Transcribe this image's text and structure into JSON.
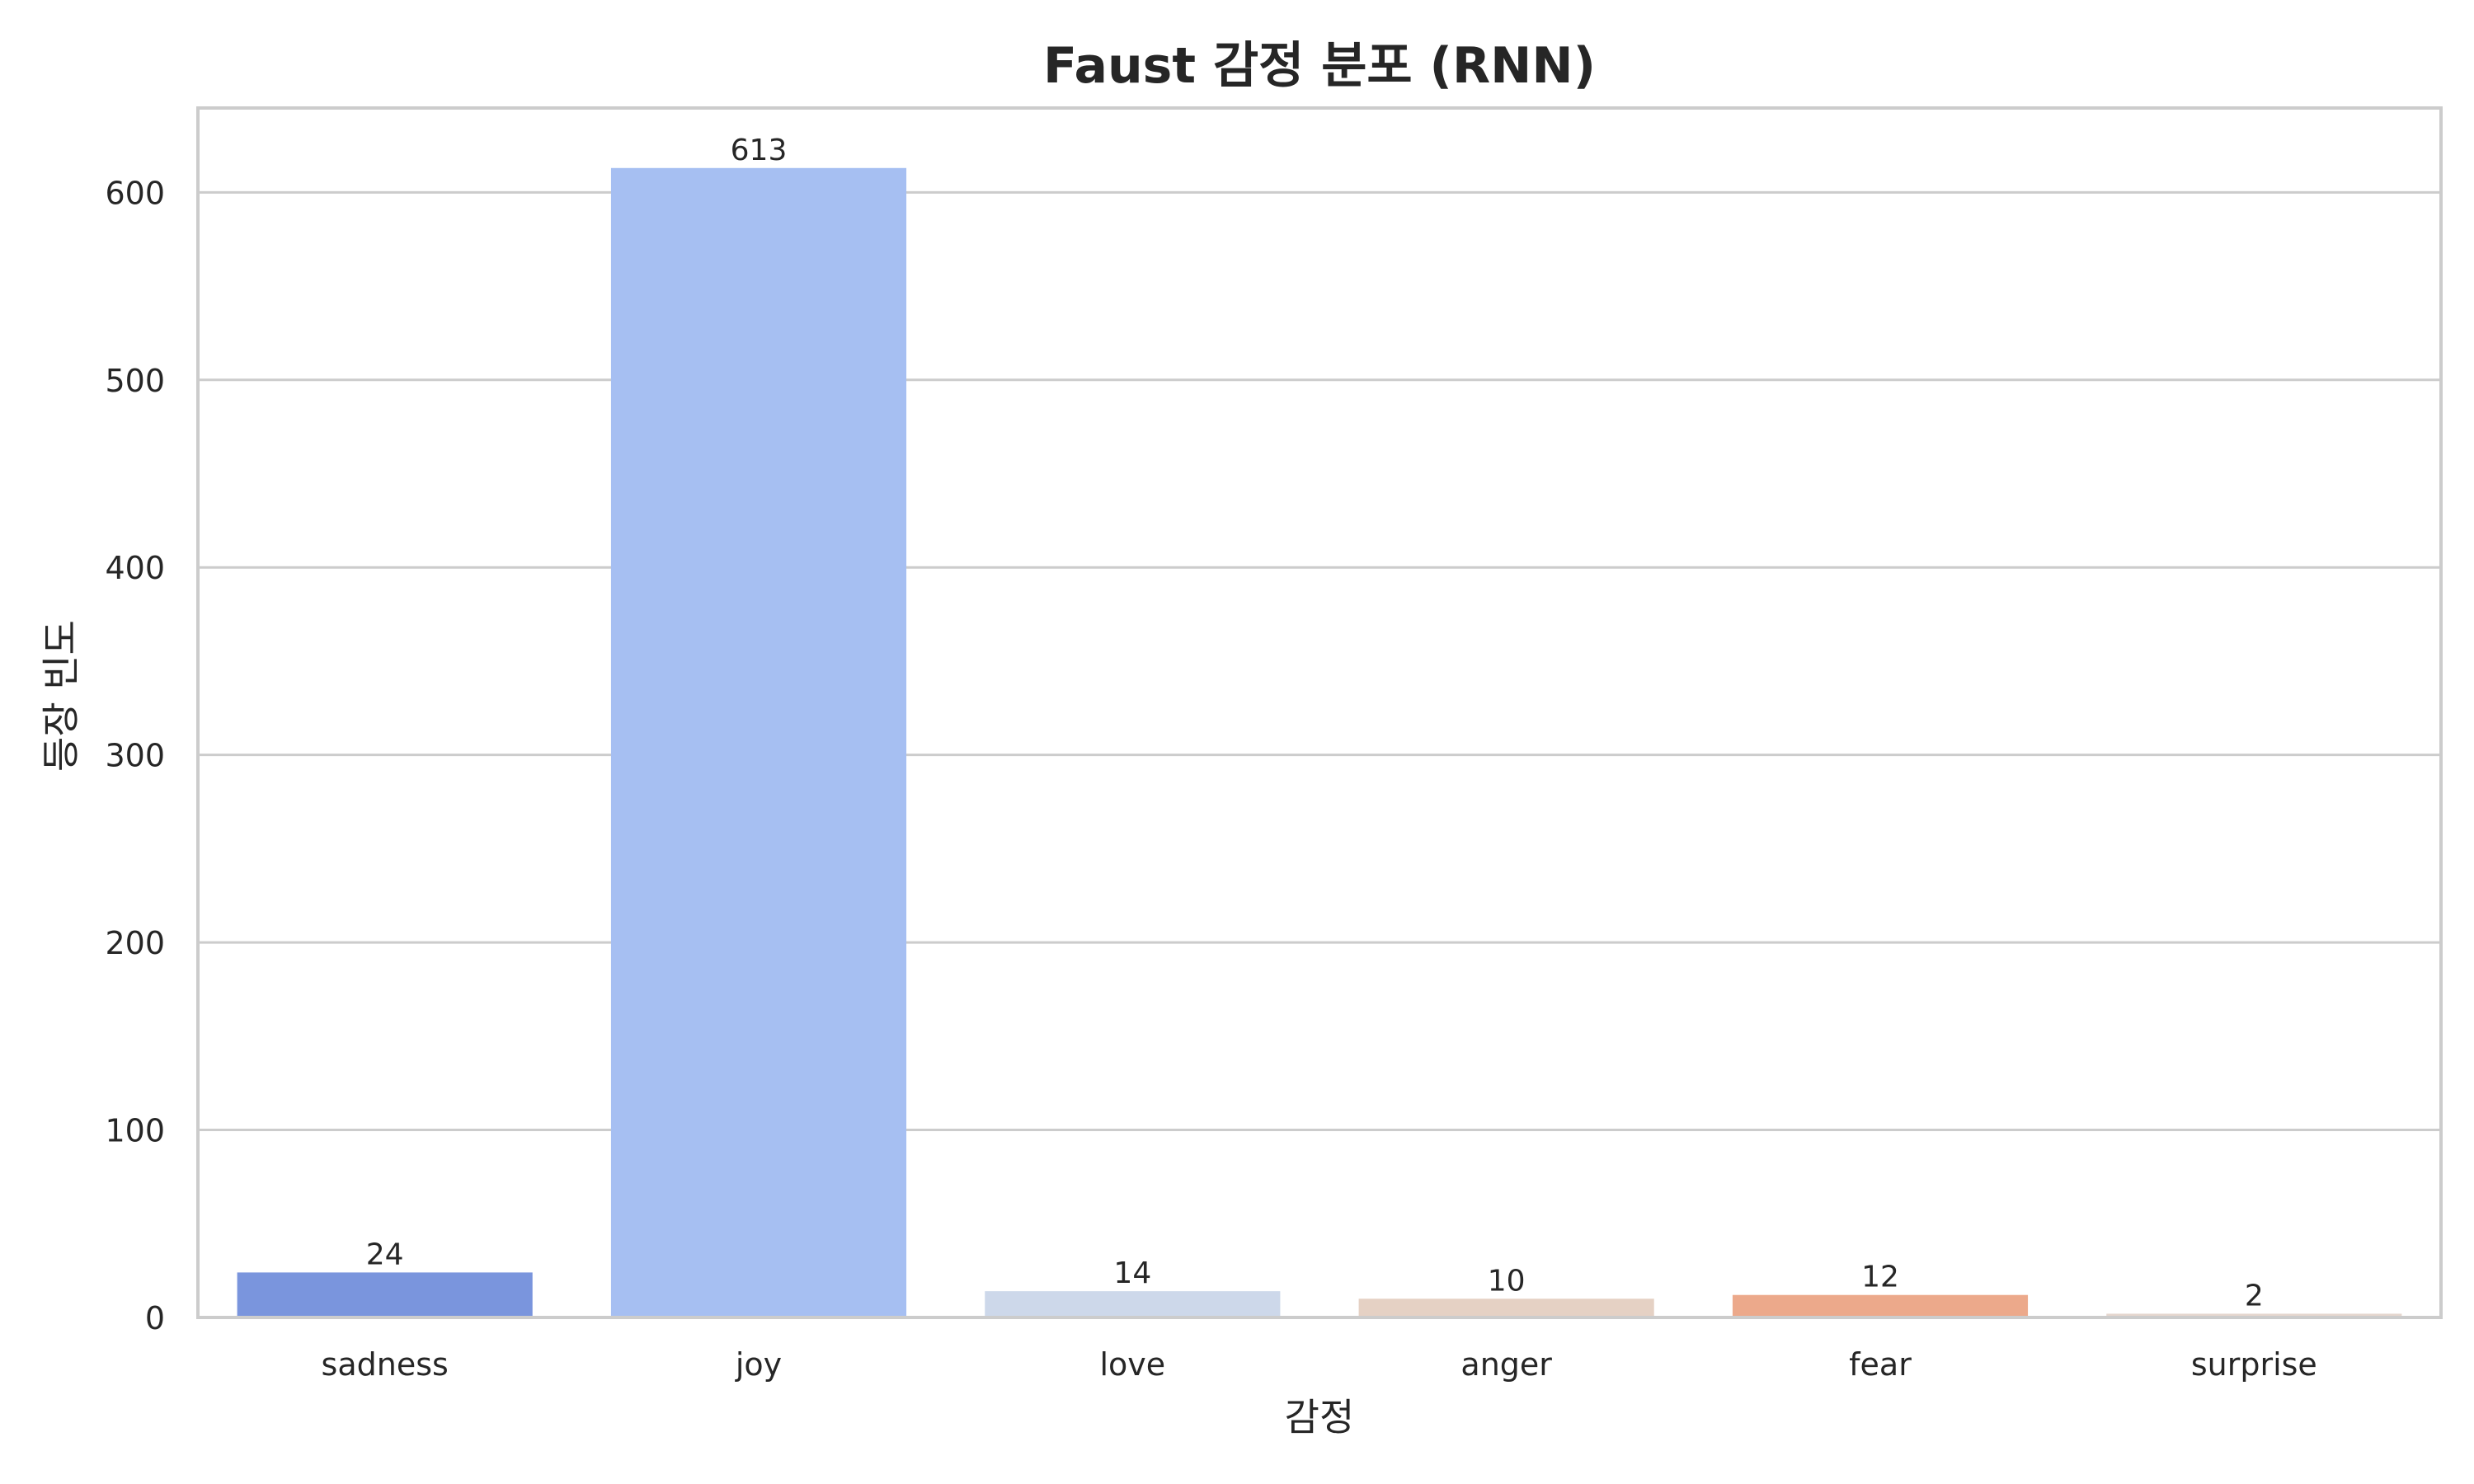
{
  "chart_data": {
    "type": "bar",
    "title": "Faust 감정 분포 (RNN)",
    "xlabel": "감정",
    "ylabel": "등장 빈도",
    "categories": [
      "sadness",
      "joy",
      "love",
      "anger",
      "fear",
      "surprise"
    ],
    "values": [
      24,
      613,
      14,
      10,
      12,
      2
    ],
    "data_labels": [
      "24",
      "613",
      "14",
      "10",
      "12",
      "2"
    ],
    "colors": [
      "#7a95dd",
      "#a6bff2",
      "#cdd8ea",
      "#e5d1c4",
      "#eca98b",
      "#e5d6ce"
    ],
    "ylim": [
      0,
      645
    ],
    "yticks": [
      0,
      100,
      200,
      300,
      400,
      500,
      600
    ],
    "ytick_labels": [
      "0",
      "100",
      "200",
      "300",
      "400",
      "500",
      "600"
    ],
    "grid": "horizontal",
    "legend": "none"
  }
}
